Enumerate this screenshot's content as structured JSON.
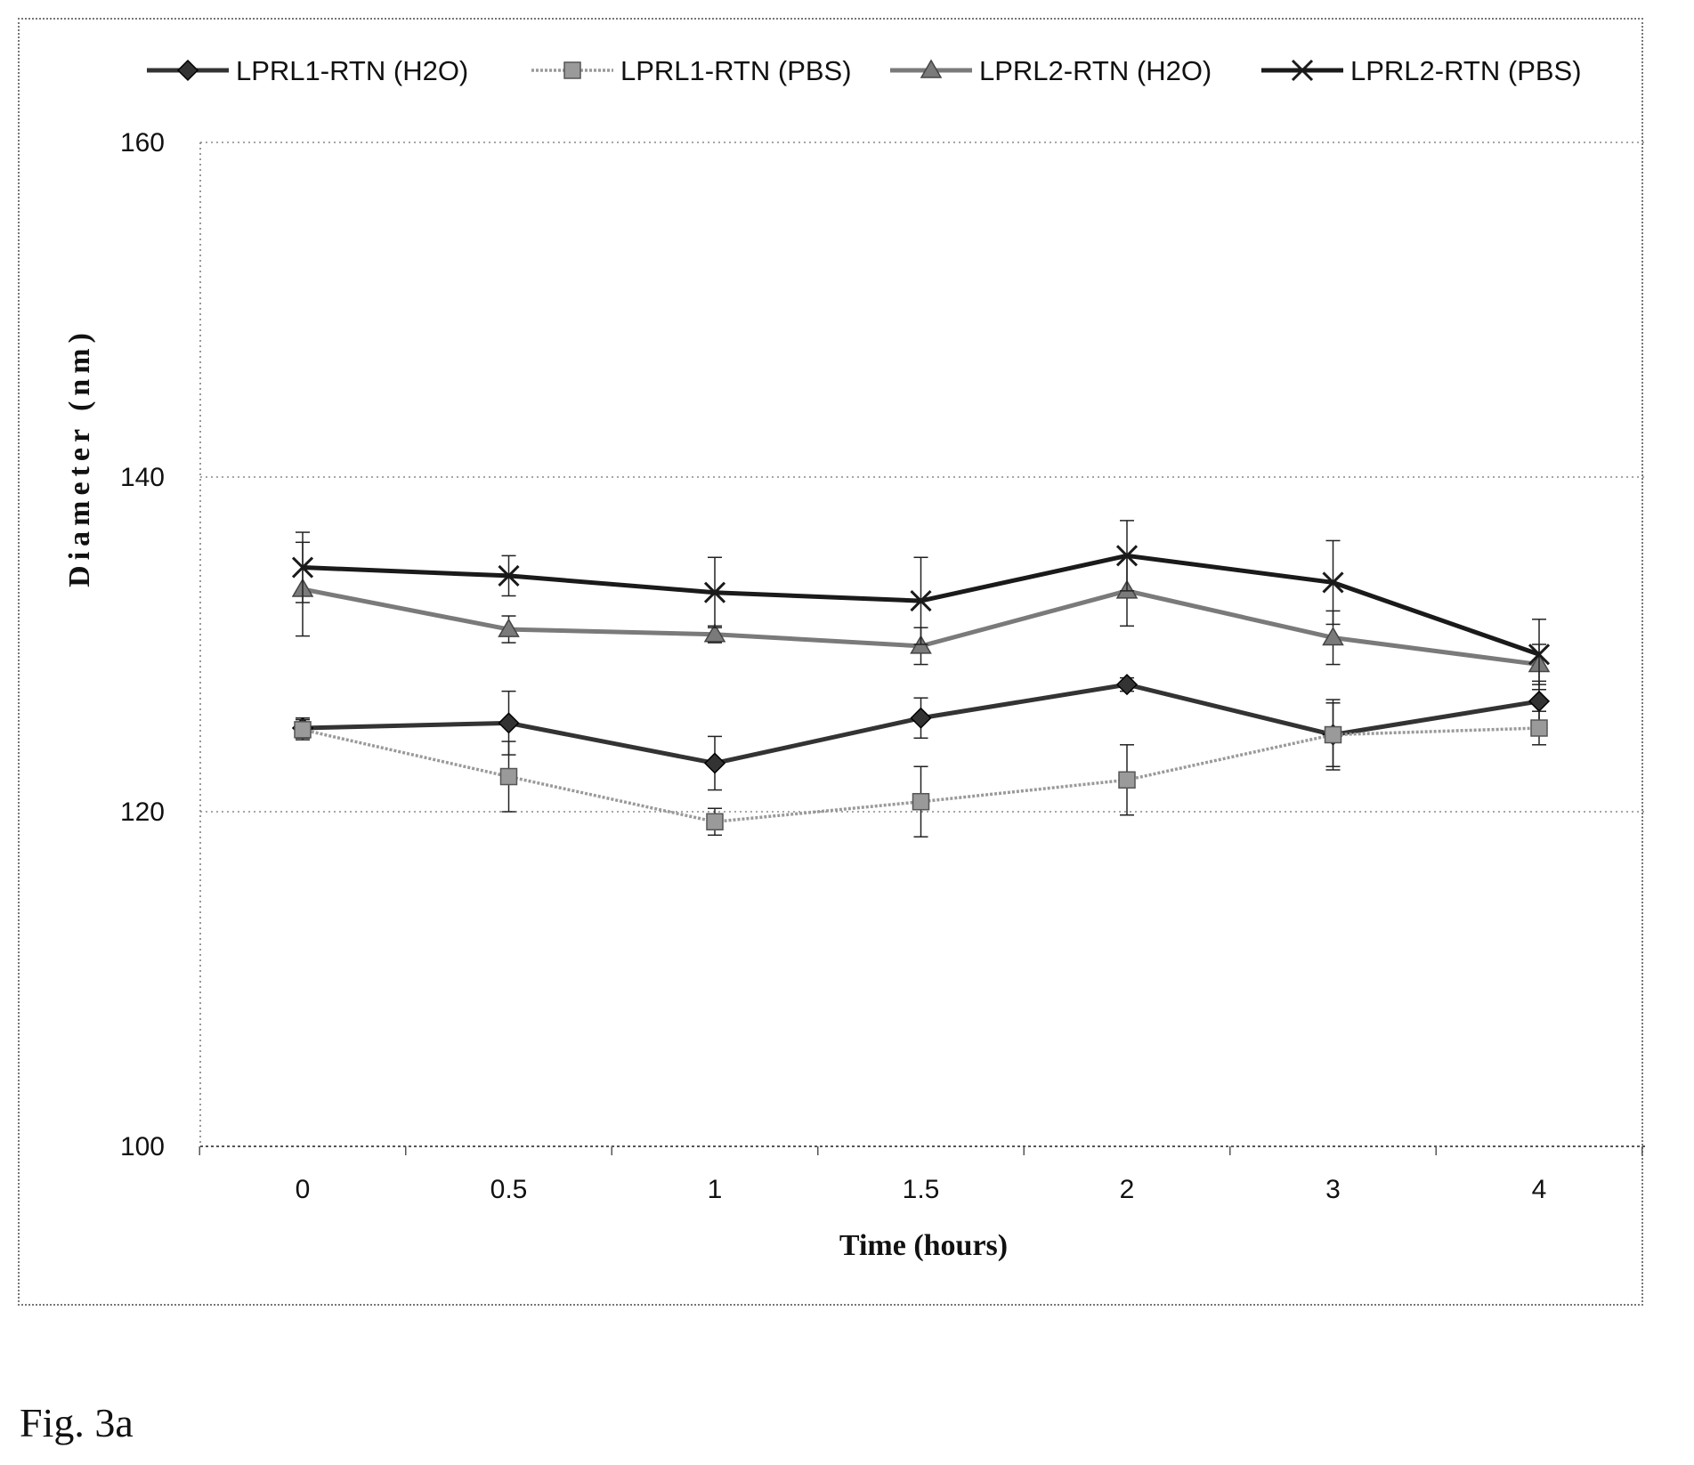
{
  "caption": "Fig. 3a",
  "chart_data": {
    "type": "line",
    "title": "",
    "xlabel": "Time (hours)",
    "ylabel": "Diameter (nm)",
    "categories": [
      "0",
      "0.5",
      "1",
      "1.5",
      "2",
      "3",
      "4"
    ],
    "ylim": [
      100,
      160
    ],
    "yticks": [
      "100",
      "120",
      "140",
      "160"
    ],
    "grid": "horizontal dotted",
    "legend_position": "top",
    "error_bars": true,
    "series": [
      {
        "name": "LPRL1-RTN (H2O)",
        "color": "#333333",
        "marker": "diamond",
        "values": [
          125.0,
          125.3,
          122.9,
          125.6,
          127.6,
          124.6,
          126.6
        ],
        "errors": [
          0.6,
          1.9,
          1.6,
          1.2,
          0.4,
          1.9,
          1.2
        ]
      },
      {
        "name": "LPRL1-RTN (PBS)",
        "color": "#9a9a9a",
        "marker": "square",
        "values": [
          124.9,
          122.1,
          119.4,
          120.6,
          121.9,
          124.6,
          125.0
        ],
        "errors": [
          0.6,
          2.1,
          0.8,
          2.1,
          2.1,
          2.1,
          1.0
        ]
      },
      {
        "name": "LPRL2-RTN (H2O)",
        "color": "#7a7a7a",
        "marker": "triangle",
        "values": [
          133.3,
          130.9,
          130.6,
          129.9,
          133.2,
          130.4,
          128.8
        ],
        "errors": [
          2.8,
          0.8,
          0.5,
          1.1,
          2.1,
          1.6,
          1.2
        ]
      },
      {
        "name": "LPRL2-RTN (PBS)",
        "color": "#1a1a1a",
        "marker": "x",
        "values": [
          134.6,
          134.1,
          133.1,
          132.6,
          135.3,
          133.7,
          129.4
        ],
        "errors": [
          2.1,
          1.2,
          2.1,
          2.6,
          2.1,
          2.5,
          2.1
        ]
      }
    ]
  }
}
